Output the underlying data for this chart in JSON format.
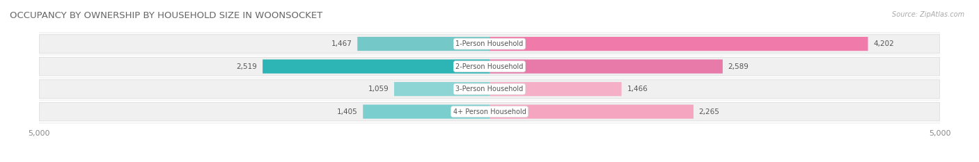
{
  "title": "OCCUPANCY BY OWNERSHIP BY HOUSEHOLD SIZE IN WOONSOCKET",
  "source": "Source: ZipAtlas.com",
  "categories": [
    "1-Person Household",
    "2-Person Household",
    "3-Person Household",
    "4+ Person Household"
  ],
  "owner_values": [
    1467,
    2519,
    1059,
    1405
  ],
  "renter_values": [
    4202,
    2589,
    1466,
    2265
  ],
  "x_max": 5000,
  "owner_color_light": "#74c8c8",
  "owner_color_dark": "#3aafaf",
  "renter_color": "#f07aaa",
  "renter_color_light": "#f5a0c0",
  "pill_bg": "#f0f0f0",
  "pill_border": "#e0e0e0",
  "title_fontsize": 9.5,
  "label_fontsize": 7.5,
  "tick_fontsize": 8,
  "legend_fontsize": 8,
  "source_fontsize": 7,
  "owner_colors": [
    "#74c8c8",
    "#2db5b5",
    "#8dd4d4",
    "#7acece"
  ],
  "renter_colors": [
    "#f07aaa",
    "#f5a0c0",
    "#f5b8ce",
    "#f5aac5"
  ]
}
